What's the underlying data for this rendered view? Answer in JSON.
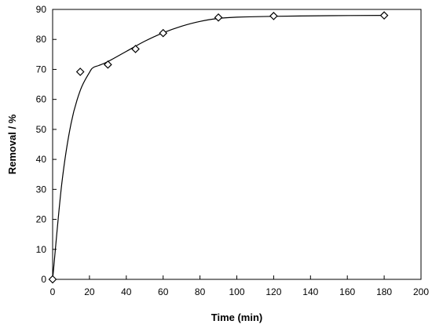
{
  "chart_data": {
    "type": "scatter",
    "title": "",
    "xlabel": "Time (min)",
    "ylabel": "Removal / %",
    "xlim": [
      0,
      200
    ],
    "ylim": [
      0,
      90
    ],
    "x_ticks": [
      0,
      20,
      40,
      60,
      80,
      100,
      120,
      140,
      160,
      180,
      200
    ],
    "y_ticks": [
      0,
      10,
      20,
      30,
      40,
      50,
      60,
      70,
      80,
      90
    ],
    "grid": false,
    "legend": "none",
    "marker": "diamond-open",
    "series": [
      {
        "x": [
          0,
          15,
          30,
          45,
          60,
          90,
          120,
          180
        ],
        "y": [
          0,
          69.2,
          71.6,
          76.8,
          82.1,
          87.3,
          87.8,
          88.0
        ]
      }
    ],
    "fit_curve": {
      "x": [
        0,
        5,
        10,
        15,
        20,
        22,
        25,
        30,
        40,
        50,
        60,
        70,
        80,
        90,
        100,
        120,
        150,
        180
      ],
      "y": [
        0,
        32,
        52,
        63,
        69,
        70.6,
        71.3,
        72.6,
        76,
        79.4,
        82.2,
        84.4,
        86,
        87,
        87.4,
        87.7,
        87.9,
        88.0
      ]
    },
    "colors": {
      "line": "#000000",
      "marker_edge": "#000000",
      "marker_fill": "#ffffff"
    }
  }
}
